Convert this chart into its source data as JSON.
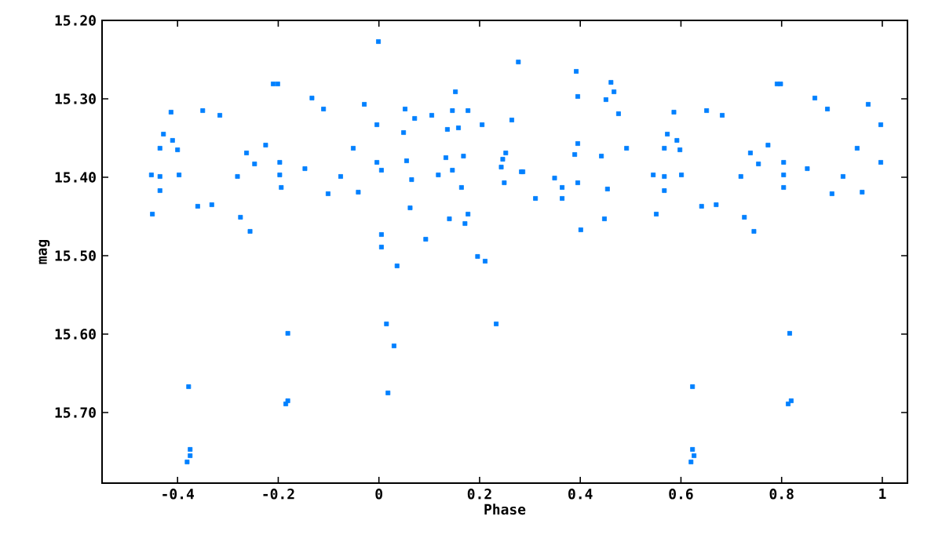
{
  "chart_data": {
    "type": "scatter",
    "xlabel": "Phase",
    "ylabel": "mag",
    "color": "#0080ff",
    "marker": "square",
    "x": [
      -0.452,
      -0.45,
      -0.435,
      -0.435,
      -0.435,
      -0.428,
      -0.413,
      -0.41,
      -0.4,
      -0.397,
      -0.378,
      -0.375,
      -0.375,
      -0.381,
      -0.36,
      -0.35,
      -0.332,
      -0.316,
      -0.281,
      -0.275,
      -0.263,
      -0.256,
      -0.247,
      -0.225,
      -0.21,
      -0.201,
      -0.197,
      -0.197,
      -0.194,
      -0.181,
      -0.185,
      -0.181,
      -0.147,
      -0.133,
      -0.11,
      -0.101,
      -0.076,
      -0.051,
      -0.041,
      -0.029,
      -0.004,
      -0.004,
      -0.001,
      0.005,
      0.005,
      0.005,
      0.015,
      0.018,
      0.03,
      0.036,
      0.049,
      0.052,
      0.055,
      0.062,
      0.065,
      0.071,
      0.093,
      0.105,
      0.118,
      0.133,
      0.136,
      0.14,
      0.146,
      0.146,
      0.152,
      0.158,
      0.164,
      0.168,
      0.171,
      0.177,
      0.177,
      0.196,
      0.205,
      0.211,
      0.233,
      0.243,
      0.246,
      0.249,
      0.252,
      0.264,
      0.277,
      0.283,
      0.286,
      0.311,
      0.349,
      0.364,
      0.364,
      0.389,
      0.392,
      0.395,
      0.395,
      0.395,
      0.401,
      0.442,
      0.448,
      0.451,
      0.454,
      0.461,
      0.467,
      0.476,
      0.492,
      0.545,
      0.551,
      0.567,
      0.567,
      0.567,
      0.573,
      0.586,
      0.592,
      0.598,
      0.601,
      0.623,
      0.623,
      0.626,
      0.62,
      0.641,
      0.651,
      0.67,
      0.682,
      0.719,
      0.726,
      0.738,
      0.745,
      0.754,
      0.773,
      0.791,
      0.798,
      0.804,
      0.804,
      0.804,
      0.816,
      0.813,
      0.819,
      0.851,
      0.866,
      0.891,
      0.9,
      0.922,
      0.95,
      0.96,
      0.972,
      0.997,
      0.997
    ],
    "values": [
      15.397,
      15.447,
      15.399,
      15.363,
      15.417,
      15.345,
      15.317,
      15.353,
      15.365,
      15.397,
      15.667,
      15.747,
      15.755,
      15.763,
      15.437,
      15.315,
      15.435,
      15.321,
      15.399,
      15.451,
      15.369,
      15.469,
      15.383,
      15.359,
      15.281,
      15.281,
      15.381,
      15.397,
      15.413,
      15.599,
      15.689,
      15.685,
      15.389,
      15.299,
      15.313,
      15.421,
      15.399,
      15.363,
      15.419,
      15.307,
      15.333,
      15.381,
      15.227,
      15.391,
      15.473,
      15.489,
      15.587,
      15.675,
      15.615,
      15.513,
      15.343,
      15.313,
      15.379,
      15.439,
      15.403,
      15.325,
      15.479,
      15.321,
      15.397,
      15.375,
      15.339,
      15.453,
      15.315,
      15.391,
      15.291,
      15.337,
      15.413,
      15.373,
      15.459,
      15.315,
      15.447,
      15.501,
      15.333,
      15.507,
      15.587,
      15.387,
      15.377,
      15.407,
      15.369,
      15.327,
      15.253,
      15.393,
      15.393,
      15.427,
      15.401,
      15.413,
      15.427,
      15.371,
      15.265,
      15.297,
      15.357,
      15.407,
      15.467,
      15.373,
      15.453,
      15.301,
      15.415,
      15.279,
      15.291,
      15.319,
      15.363,
      15.397,
      15.447,
      15.363,
      15.399,
      15.417,
      15.345,
      15.317,
      15.353,
      15.365,
      15.397,
      15.667,
      15.747,
      15.755,
      15.763,
      15.437,
      15.315,
      15.435,
      15.321,
      15.399,
      15.451,
      15.369,
      15.469,
      15.383,
      15.359,
      15.281,
      15.281,
      15.381,
      15.397,
      15.413,
      15.599,
      15.689,
      15.685,
      15.389,
      15.299,
      15.313,
      15.421,
      15.399,
      15.363,
      15.419,
      15.307,
      15.333,
      15.381
    ],
    "xlim": [
      -0.55,
      1.05
    ],
    "ylim": [
      15.79,
      15.2
    ],
    "xticks": [
      -0.4,
      -0.2,
      0,
      0.2,
      0.4,
      0.6,
      0.8,
      1
    ],
    "yticks": [
      {
        "value": 15.2,
        "label": "15.20"
      },
      {
        "value": 15.3,
        "label": "15.30"
      },
      {
        "value": 15.4,
        "label": "15.40"
      },
      {
        "value": 15.5,
        "label": "15.50"
      },
      {
        "value": 15.6,
        "label": "15.60"
      },
      {
        "value": 15.7,
        "label": "15.70"
      }
    ]
  }
}
